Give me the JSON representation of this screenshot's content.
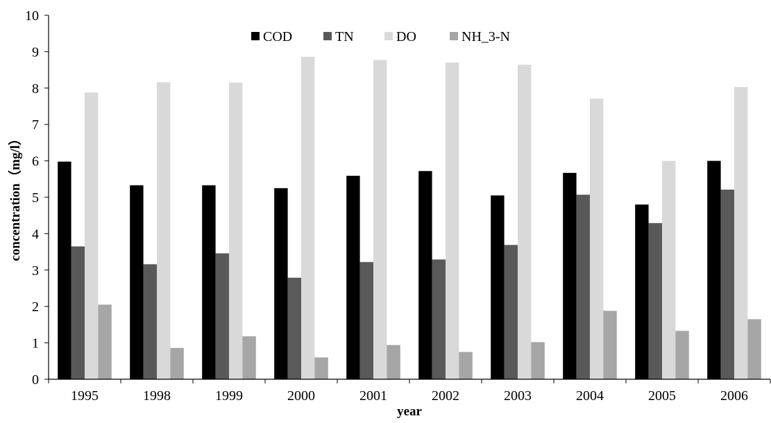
{
  "chart_data": {
    "type": "bar",
    "title": "",
    "xlabel": "year",
    "ylabel": "concentration（mg/l）",
    "categories": [
      "1995",
      "1998",
      "1999",
      "2000",
      "2001",
      "2002",
      "2003",
      "2004",
      "2005",
      "2006"
    ],
    "series": [
      {
        "name": "COD",
        "color": "#000000",
        "values": [
          5.98,
          5.33,
          5.33,
          5.25,
          5.59,
          5.72,
          5.05,
          5.67,
          4.8,
          6.0
        ]
      },
      {
        "name": "TN",
        "color": "#595959",
        "values": [
          3.65,
          3.16,
          3.46,
          2.79,
          3.22,
          3.29,
          3.69,
          5.07,
          4.29,
          5.21
        ]
      },
      {
        "name": "DO",
        "color": "#d9d9d9",
        "values": [
          7.88,
          8.16,
          8.15,
          8.86,
          8.77,
          8.7,
          8.64,
          7.71,
          6.0,
          8.03
        ]
      },
      {
        "name": "NH_3-N",
        "color": "#a6a6a6",
        "values": [
          2.05,
          0.86,
          1.18,
          0.6,
          0.94,
          0.75,
          1.02,
          1.88,
          1.33,
          1.65
        ]
      }
    ],
    "ylim": [
      0,
      10
    ],
    "yticks": [
      "0",
      "1",
      "2",
      "3",
      "4",
      "5",
      "6",
      "7",
      "8",
      "9",
      "10"
    ],
    "grid": false,
    "legend_position": "top-center"
  }
}
